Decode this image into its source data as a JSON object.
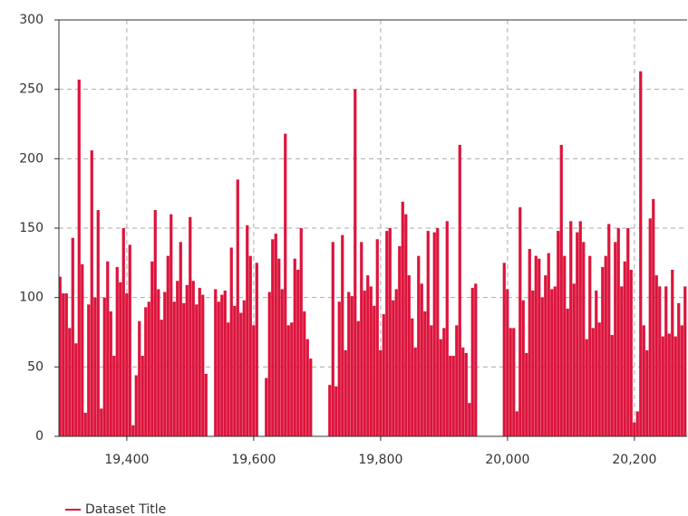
{
  "chart_data": {
    "type": "bar",
    "x": [
      19295,
      19300,
      19305,
      19310,
      19315,
      19320,
      19325,
      19330,
      19335,
      19340,
      19345,
      19350,
      19355,
      19360,
      19365,
      19370,
      19375,
      19380,
      19385,
      19390,
      19395,
      19400,
      19405,
      19410,
      19415,
      19420,
      19425,
      19430,
      19435,
      19440,
      19445,
      19450,
      19455,
      19460,
      19465,
      19470,
      19475,
      19480,
      19485,
      19490,
      19495,
      19500,
      19505,
      19510,
      19515,
      19520,
      19525,
      19540,
      19545,
      19550,
      19555,
      19560,
      19565,
      19570,
      19575,
      19580,
      19585,
      19590,
      19595,
      19600,
      19605,
      19620,
      19625,
      19630,
      19635,
      19640,
      19645,
      19650,
      19655,
      19660,
      19665,
      19670,
      19675,
      19680,
      19685,
      19690,
      19720,
      19725,
      19730,
      19735,
      19740,
      19745,
      19750,
      19755,
      19760,
      19765,
      19770,
      19775,
      19780,
      19785,
      19790,
      19795,
      19800,
      19805,
      19810,
      19815,
      19820,
      19825,
      19830,
      19835,
      19840,
      19845,
      19850,
      19855,
      19860,
      19865,
      19870,
      19875,
      19880,
      19885,
      19890,
      19895,
      19900,
      19905,
      19910,
      19915,
      19920,
      19925,
      19930,
      19935,
      19940,
      19945,
      19950,
      19995,
      20000,
      20005,
      20010,
      20015,
      20020,
      20025,
      20030,
      20035,
      20040,
      20045,
      20050,
      20055,
      20060,
      20065,
      20070,
      20075,
      20080,
      20085,
      20090,
      20095,
      20100,
      20105,
      20110,
      20115,
      20120,
      20125,
      20130,
      20135,
      20140,
      20145,
      20150,
      20155,
      20160,
      20165,
      20170,
      20175,
      20180,
      20185,
      20190,
      20195,
      20200,
      20205,
      20210,
      20215,
      20220,
      20225,
      20230,
      20235,
      20240,
      20245,
      20250,
      20255,
      20260,
      20265,
      20270,
      20275,
      20280
    ],
    "series": [
      {
        "name": "Dataset Title",
        "color": "#dc143c",
        "values": [
          115,
          103,
          103,
          78,
          143,
          67,
          257,
          124,
          17,
          95,
          206,
          100,
          163,
          20,
          100,
          126,
          90,
          58,
          122,
          111,
          150,
          103,
          138,
          8,
          44,
          83,
          58,
          93,
          97,
          126,
          163,
          106,
          84,
          104,
          130,
          160,
          97,
          112,
          140,
          96,
          109,
          158,
          112,
          95,
          107,
          102,
          45,
          106,
          97,
          102,
          105,
          82,
          136,
          94,
          185,
          89,
          98,
          152,
          130,
          80,
          125,
          42,
          104,
          142,
          146,
          128,
          106,
          218,
          80,
          82,
          128,
          120,
          150,
          90,
          70,
          56,
          37,
          140,
          36,
          97,
          145,
          62,
          104,
          101,
          250,
          83,
          140,
          105,
          116,
          108,
          94,
          142,
          62,
          88,
          148,
          150,
          98,
          106,
          137,
          169,
          160,
          116,
          85,
          64,
          130,
          110,
          90,
          148,
          80,
          147,
          150,
          70,
          78,
          155,
          58,
          58,
          80,
          210,
          64,
          60,
          24,
          107,
          110,
          125,
          106,
          78,
          78,
          18,
          165,
          98,
          60,
          135,
          105,
          130,
          128,
          100,
          116,
          132,
          106,
          108,
          148,
          210,
          130,
          92,
          155,
          110,
          147,
          155,
          140,
          70,
          130,
          78,
          105,
          82,
          122,
          130,
          153,
          73,
          140,
          150,
          108,
          126,
          150,
          120,
          10,
          18,
          263,
          80,
          62,
          157,
          171,
          116,
          108,
          72,
          108,
          74,
          120,
          72,
          96,
          80,
          108
        ]
      }
    ],
    "bar_width": 5,
    "xlim": [
      19293,
      20283
    ],
    "ylim": [
      0,
      300
    ],
    "xticks": [
      {
        "value": 19400,
        "label": "19,400"
      },
      {
        "value": 19600,
        "label": "19,600"
      },
      {
        "value": 19800,
        "label": "19,800"
      },
      {
        "value": 20000,
        "label": "20,000"
      },
      {
        "value": 20200,
        "label": "20,200"
      }
    ],
    "yticks": [
      0,
      50,
      100,
      150,
      200,
      250,
      300
    ],
    "grid": true,
    "legend": "bottom-left"
  }
}
